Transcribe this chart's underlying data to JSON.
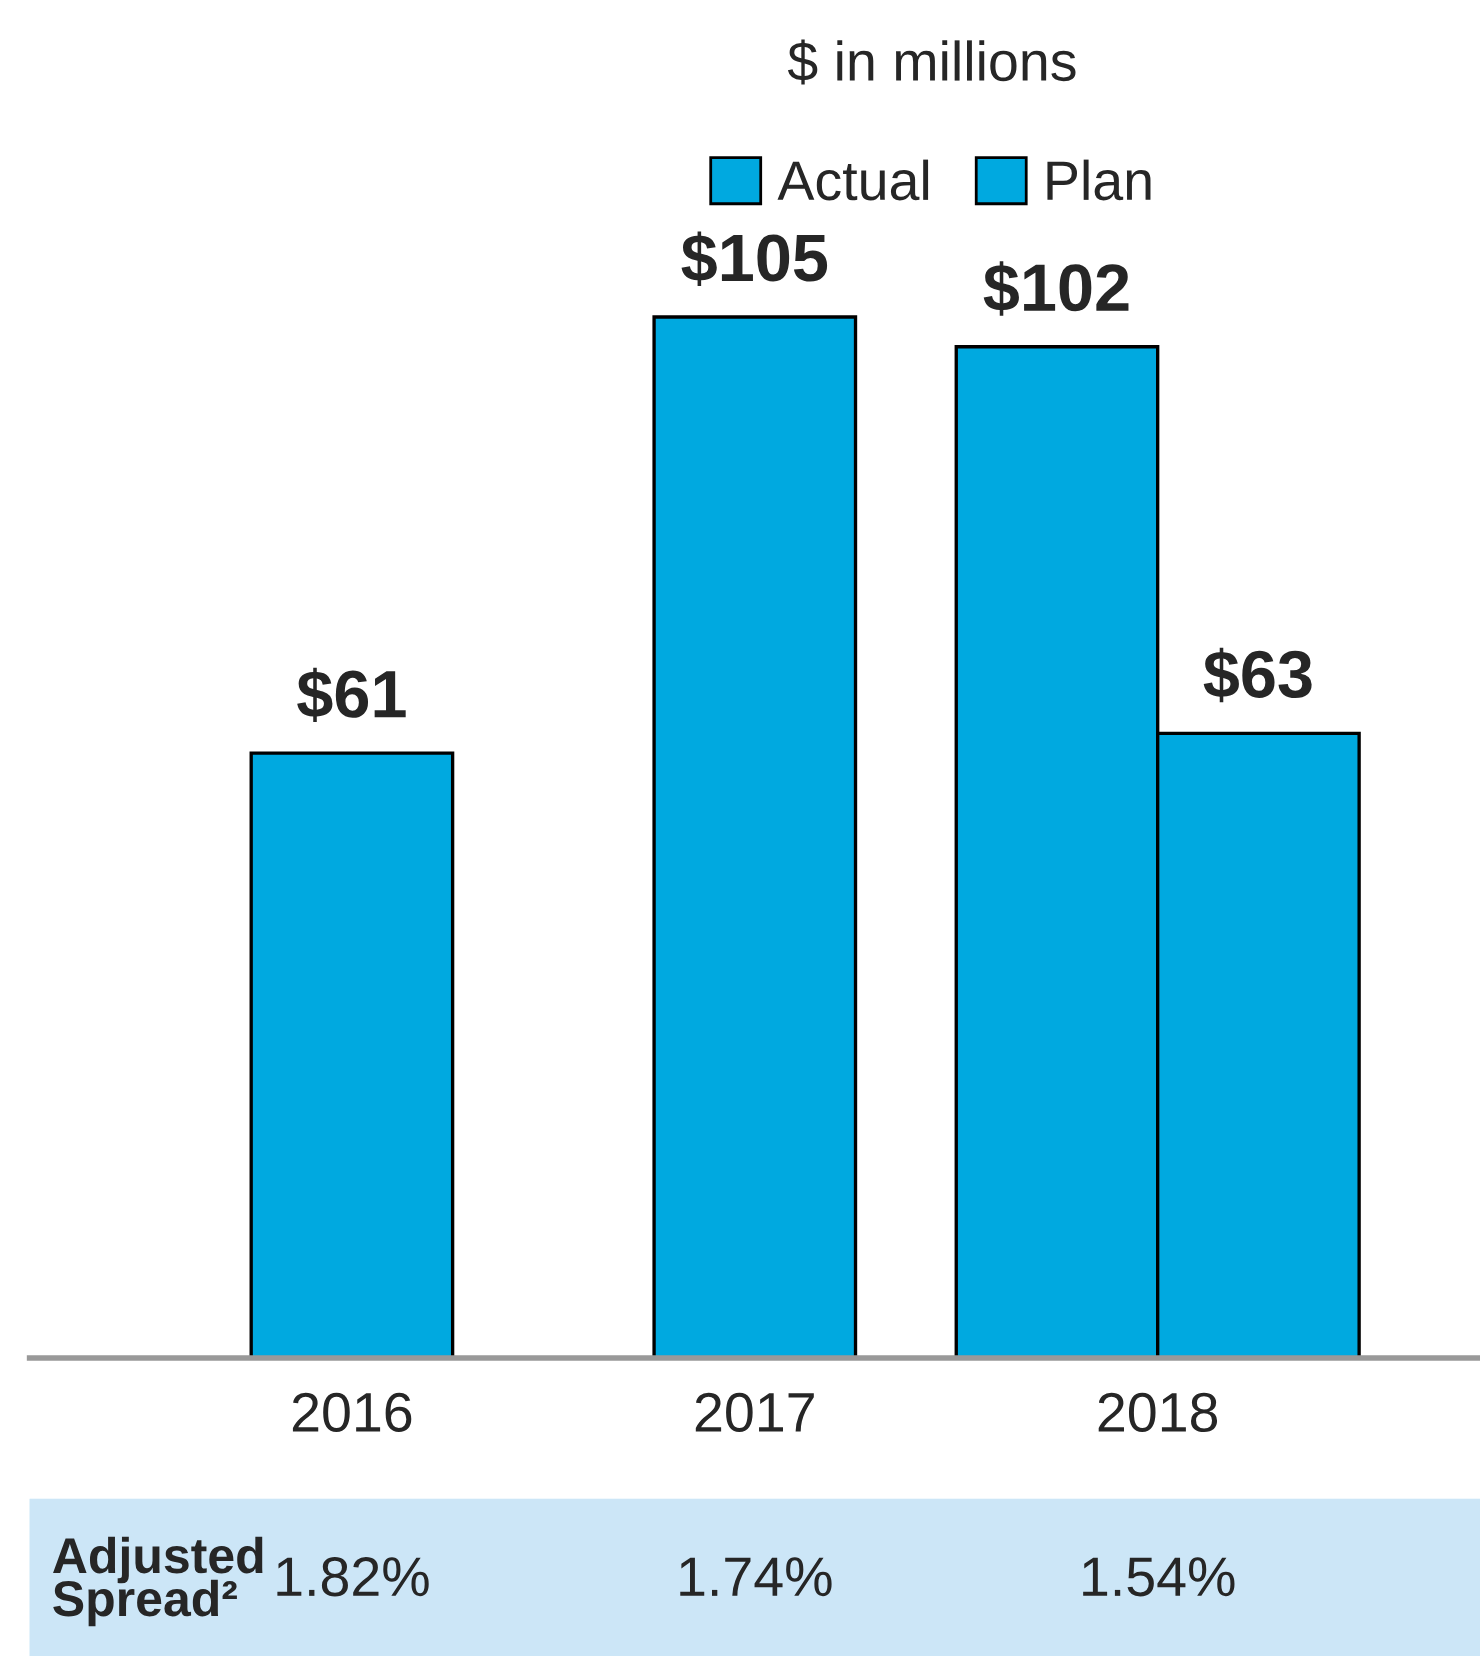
{
  "chart_data": {
    "type": "bar",
    "subtitle": "$ in millions",
    "categories": [
      "2016",
      "2017",
      "2018"
    ],
    "series": [
      {
        "name": "Actual",
        "color": "#00a9e0",
        "values": [
          61,
          105,
          102
        ],
        "value_labels": [
          "$61",
          "$105",
          "$102"
        ]
      },
      {
        "name": "Plan",
        "color": "#00a9e0",
        "values": [
          null,
          null,
          63
        ],
        "value_labels": [
          null,
          null,
          "$63"
        ]
      }
    ],
    "legend": "top",
    "grid": false,
    "annotations": [
      "Adjusted Spread²",
      "1.82%",
      "1.74%",
      "1.54%"
    ]
  }
}
